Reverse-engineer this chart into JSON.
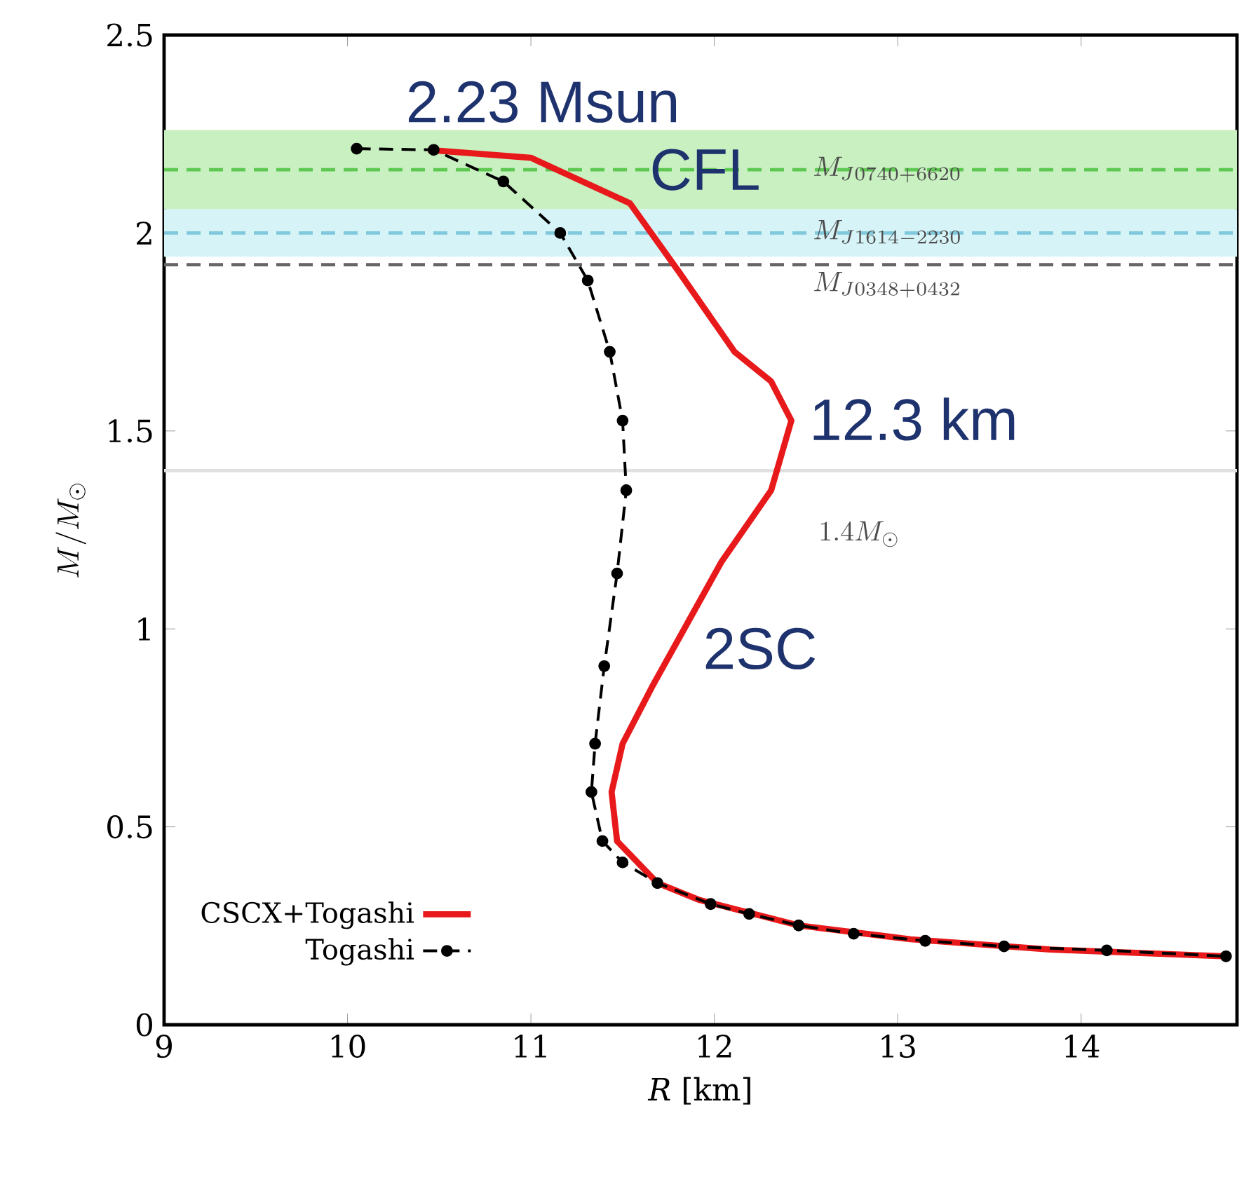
{
  "chart_data": {
    "type": "line",
    "xlabel": "*R* [km]",
    "ylabel": "M/M_{\\odot}",
    "xlim": [
      9,
      14.85
    ],
    "ylim": [
      0,
      2.5
    ],
    "xticks": [
      9,
      10,
      11,
      12,
      13,
      14
    ],
    "yticks": [
      0,
      0.5,
      1,
      1.5,
      2,
      2.5
    ],
    "legend": "bottom left",
    "series": [
      {
        "name": "CSCX+Togashi",
        "color": "#e8191b",
        "marker": "none",
        "line_style": "solid",
        "x": [
          10.44,
          11.0,
          11.54,
          11.81,
          12.11,
          12.31,
          12.42,
          12.31,
          12.04,
          11.66,
          11.5,
          11.44,
          11.47,
          11.69,
          11.92,
          12.46,
          13.07,
          13.83,
          14.79
        ],
        "values": [
          2.21,
          2.19,
          2.075,
          1.9,
          1.7,
          1.625,
          1.526,
          1.35,
          1.17,
          0.853,
          0.71,
          0.588,
          0.464,
          0.358,
          0.315,
          0.251,
          0.216,
          0.19,
          0.173
        ]
      },
      {
        "name": "Togashi",
        "color": "#000000",
        "marker": "circle",
        "line_style": "dashed",
        "x": [
          10.05,
          10.47,
          10.85,
          11.16,
          11.31,
          11.43,
          11.5,
          11.52,
          11.47,
          11.4,
          11.35,
          11.33,
          11.39,
          11.5,
          11.69,
          11.98,
          12.19,
          12.46,
          12.76,
          13.15,
          13.58,
          14.14,
          14.79
        ],
        "values": [
          2.213,
          2.21,
          2.13,
          2.0,
          1.88,
          1.7,
          1.526,
          1.35,
          1.14,
          0.906,
          0.71,
          0.588,
          0.464,
          0.41,
          0.358,
          0.305,
          0.28,
          0.251,
          0.23,
          0.212,
          0.198,
          0.188,
          0.173
        ]
      }
    ],
    "bands": [
      {
        "axis": "y",
        "from": 2.06,
        "to": 2.26,
        "color": "#c8f0c0"
      },
      {
        "axis": "y",
        "from": 1.94,
        "to": 2.06,
        "color": "#d6f4f8"
      }
    ],
    "ref_lines": [
      {
        "axis": "y",
        "value": 2.16,
        "label": "M_{J0740+6620}",
        "color": "#5cc850",
        "line_style": "dashed"
      },
      {
        "axis": "y",
        "value": 2.0,
        "label": "M_{J1614-2230}",
        "color": "#80c8dc",
        "line_style": "dashed"
      },
      {
        "axis": "y",
        "value": 1.92,
        "label": "M_{J0348+0432}",
        "color": "#666666",
        "line_style": "dashed"
      },
      {
        "axis": "y",
        "value": 1.4,
        "label": "1.4M_{\\odot}",
        "color": "#e0e0e0",
        "line_style": "solid"
      }
    ],
    "annotations": [
      "2.23 Msun",
      "CFL",
      "12.3 km",
      "2SC"
    ]
  }
}
